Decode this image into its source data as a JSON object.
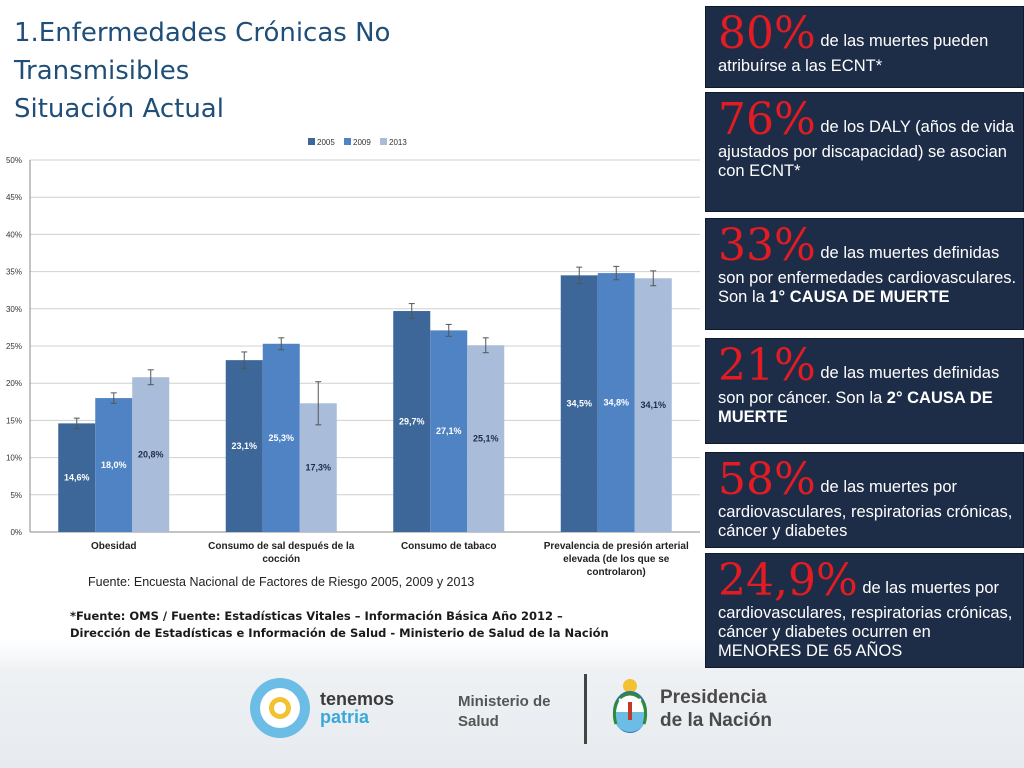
{
  "title": {
    "line1": "1.Enfermedades Crónicas No",
    "line2": "Transmisibles",
    "line3": "Situación Actual"
  },
  "chart_data": {
    "type": "bar",
    "categories": [
      [
        "Obesidad"
      ],
      [
        "Consumo de sal después de la",
        "cocción"
      ],
      [
        "Consumo de tabaco"
      ],
      [
        "Prevalencia de presión arterial",
        "elevada (de los que se",
        "controlaron)"
      ]
    ],
    "series": [
      {
        "name": "2005",
        "color": "#3d6799",
        "values": [
          14.6,
          23.1,
          29.7,
          34.5
        ],
        "labels": [
          "14,6%",
          "23,1%",
          "29,7%",
          "34,5%"
        ],
        "error": [
          0.7,
          1.1,
          1.0,
          1.1
        ]
      },
      {
        "name": "2009",
        "color": "#5083c3",
        "values": [
          18.0,
          25.3,
          27.1,
          34.8
        ],
        "labels": [
          "18,0%",
          "25,3%",
          "27,1%",
          "34,8%"
        ],
        "error": [
          0.7,
          0.8,
          0.8,
          0.9
        ]
      },
      {
        "name": "2013",
        "color": "#a9bcd9",
        "values": [
          20.8,
          17.3,
          25.1,
          34.1
        ],
        "labels": [
          "20,8%",
          "17,3%",
          "25,1%",
          "34,1%"
        ],
        "error": [
          1.0,
          2.9,
          1.0,
          1.0
        ]
      }
    ],
    "ylim": [
      0,
      50
    ],
    "yticks": [
      "0%",
      "5%",
      "10%",
      "15%",
      "20%",
      "25%",
      "30%",
      "35%",
      "40%",
      "45%",
      "50%"
    ],
    "grid": true,
    "legend": "top-center",
    "xlabel": "",
    "ylabel": ""
  },
  "source_text": "Fuente: Encuesta Nacional de Factores de Riesgo 2005, 2009 y 2013",
  "footnote": {
    "line1": "*Fuente: OMS  /  Fuente: Estadísticas Vitales – Información Básica Año 2012 –",
    "line2": "Dirección de Estadísticas e Información de Salud - Ministerio de Salud de la Nación"
  },
  "stats": [
    {
      "pct": "80%",
      "pre": " de las muertes pueden atribuírse a las ECNT*",
      "bold": "",
      "post": ""
    },
    {
      "pct": "76%",
      "pre": " de los DALY (años de vida ajustados por discapacidad) se asocian con ECNT*",
      "bold": "",
      "post": ""
    },
    {
      "pct": "33%",
      "pre": " de las muertes definidas son por enfermedades cardiovasculares. Son la ",
      "bold": "1° CAUSA DE MUERTE",
      "post": ""
    },
    {
      "pct": "21%",
      "pre": " de las muertes definidas son por cáncer. Son la ",
      "bold": "2° CAUSA DE MUERTE",
      "post": ""
    },
    {
      "pct": "58%",
      "pre": " de las muertes por cardiovasculares, respiratorias crónicas, cáncer y diabetes",
      "bold": "",
      "post": ""
    },
    {
      "pct": "24,9%",
      "pre": " de las muertes por cardiovasculares, respiratorias crónicas, cáncer y diabetes ocurren en MENORES DE 65 AÑOS",
      "bold": "",
      "post": ""
    }
  ],
  "logos": {
    "tp_line1": "tenemos",
    "tp_line2": "patria",
    "ms_line1": "Ministerio de",
    "ms_line2": "Salud",
    "pn_line1": "Presidencia",
    "pn_line2": "de la Nación"
  },
  "colors": {
    "title": "#1f4e79",
    "box_bg": "#1e2d47",
    "pct_red": "#e31b23"
  }
}
